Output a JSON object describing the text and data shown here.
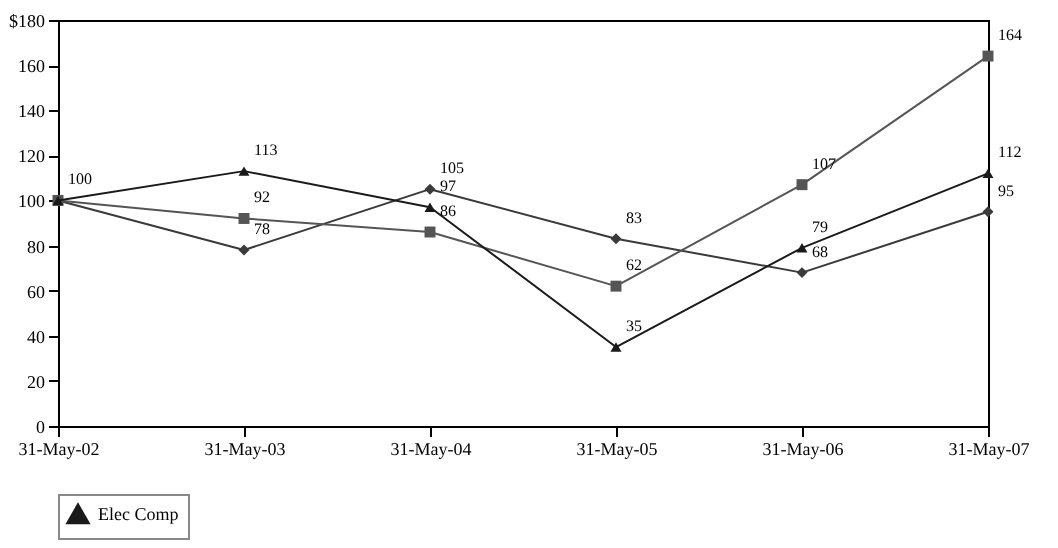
{
  "chart_data": {
    "type": "line",
    "categories": [
      "31-May-02",
      "31-May-03",
      "31-May-04",
      "31-May-05",
      "31-May-06",
      "31-May-07"
    ],
    "series": [
      {
        "color": "#3a3a3a",
        "marker": "diamond",
        "values": [
          100,
          78,
          105,
          83,
          68,
          95
        ],
        "value_labels": [
          "100",
          "78",
          "105",
          "83",
          "68",
          "95"
        ]
      },
      {
        "color": "#555555",
        "marker": "square",
        "values": [
          100,
          92,
          86,
          62,
          107,
          164
        ],
        "value_labels": [
          null,
          "92",
          "86",
          "62",
          "107",
          "164"
        ]
      },
      {
        "name": "Elec Comp",
        "color": "#1a1a1a",
        "marker": "triangle",
        "values": [
          100,
          113,
          97,
          35,
          79,
          112
        ],
        "value_labels": [
          null,
          "113",
          "97",
          "35",
          "79",
          "112"
        ]
      }
    ],
    "ylim": [
      0,
      180
    ],
    "yticks": [
      0,
      20,
      40,
      60,
      80,
      100,
      120,
      140,
      160,
      {
        "value": 180,
        "label": "$180"
      }
    ],
    "grid": false,
    "legend": "bottom",
    "line_style": "solid"
  }
}
